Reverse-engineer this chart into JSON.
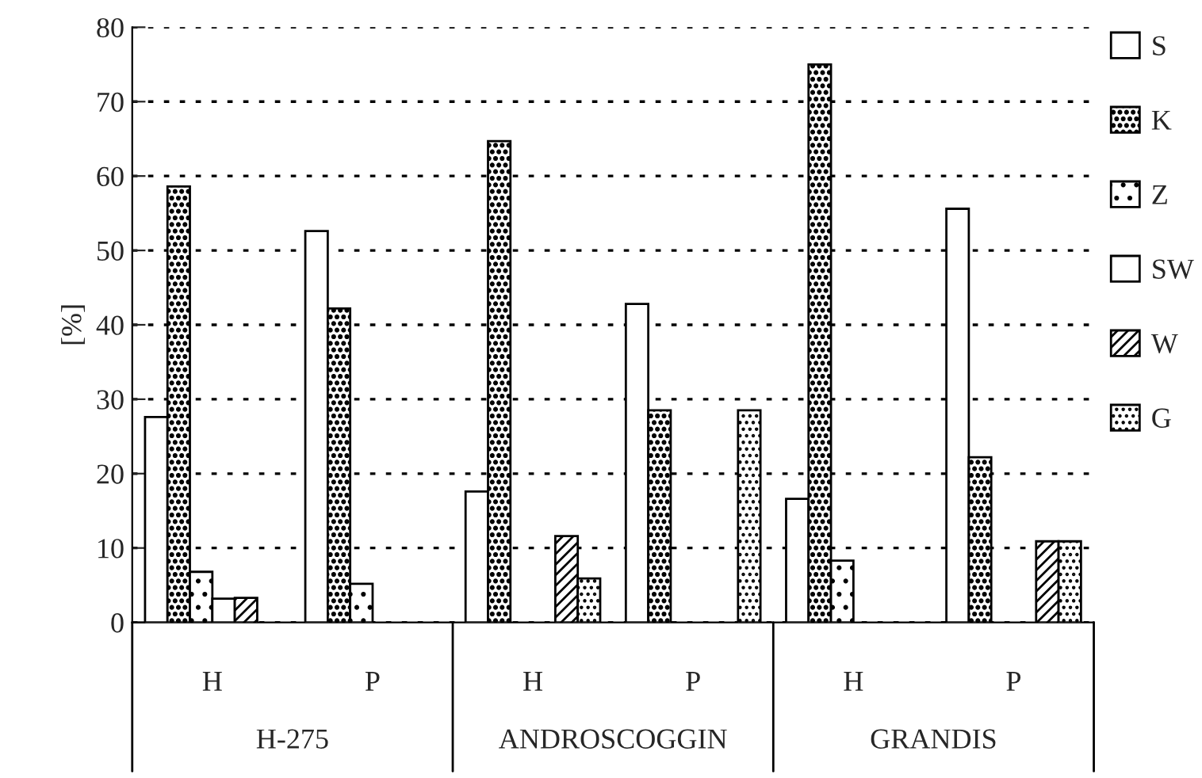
{
  "chart_data": {
    "type": "bar",
    "ylabel": "[%]",
    "categories": [
      "H",
      "P",
      "H",
      "P",
      "H",
      "P"
    ],
    "annotations": [
      "H-275",
      "ANDROSCOGGIN",
      "GRANDIS"
    ],
    "series": [
      {
        "name": "S",
        "color": "#ffffff",
        "values": [
          27.6,
          52.6,
          17.6,
          42.8,
          16.6,
          55.6
        ]
      },
      {
        "name": "K",
        "color": "#000000",
        "values": [
          58.6,
          42.2,
          64.7,
          28.5,
          75.0,
          22.2
        ]
      },
      {
        "name": "Z",
        "color": "#000000",
        "values": [
          6.8,
          5.2,
          null,
          null,
          8.3,
          null
        ]
      },
      {
        "name": "SW",
        "color": "#000000",
        "values": [
          3.2,
          null,
          null,
          null,
          null,
          null
        ]
      },
      {
        "name": "W",
        "color": "#000000",
        "values": [
          3.3,
          null,
          11.6,
          null,
          null,
          10.9
        ]
      },
      {
        "name": "G",
        "color": "#000000",
        "values": [
          null,
          null,
          5.9,
          28.5,
          null,
          10.9
        ]
      }
    ],
    "ylim": [
      0,
      80
    ],
    "yticks": [
      0,
      10,
      20,
      30,
      40,
      50,
      60,
      70,
      80
    ],
    "grid": "y",
    "legend": "right"
  }
}
